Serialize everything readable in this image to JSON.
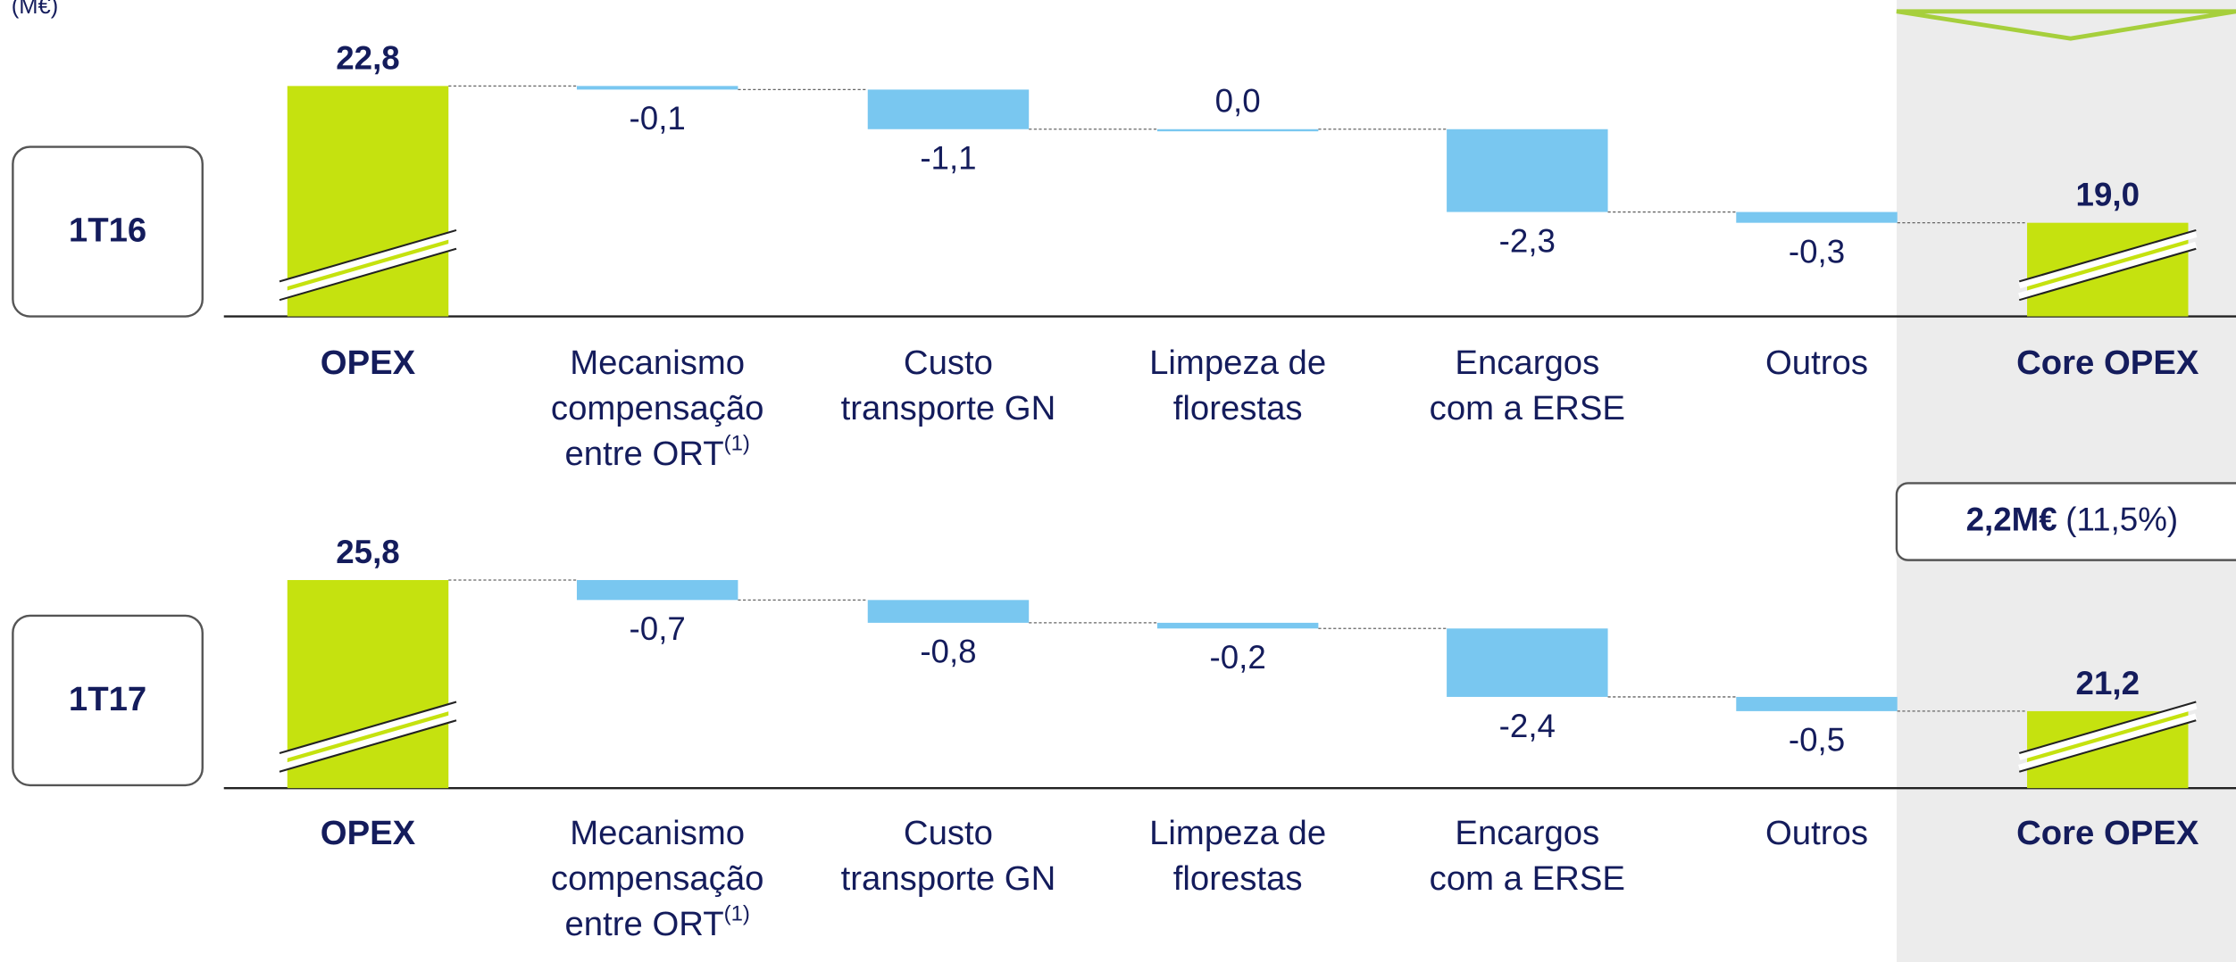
{
  "unit": "(M€)",
  "annotation": {
    "amount": "2,2M€",
    "percent": "(11,5%)"
  },
  "chart_data": [
    {
      "type": "waterfall",
      "label": "1T16",
      "categories": [
        [
          "OPEX"
        ],
        [
          "Mecanismo",
          "compensação",
          "entre ORT"
        ],
        [
          "Custo",
          "transporte GN"
        ],
        [
          "Limpeza de",
          "florestas"
        ],
        [
          "Encargos",
          "com a ERSE"
        ],
        [
          "Outros"
        ],
        [
          "Core OPEX"
        ]
      ],
      "footnote_marks": [
        null,
        "(1)",
        null,
        null,
        null,
        null,
        null
      ],
      "measure": [
        "absolute",
        "relative",
        "relative",
        "relative",
        "relative",
        "relative",
        "absolute"
      ],
      "values": [
        22.8,
        -0.1,
        -1.1,
        0.0,
        -2.3,
        -0.3,
        19.0
      ],
      "value_labels": [
        "22,8",
        "-0,1",
        "-1,1",
        "0,0",
        "-2,3",
        "-0,3",
        "19,0"
      ],
      "total_color": "#c5e20f",
      "delta_color": "#79c7f0",
      "ylim": [
        16.4,
        24.0
      ],
      "axis_break": true
    },
    {
      "type": "waterfall",
      "label": "1T17",
      "categories": [
        [
          "OPEX"
        ],
        [
          "Mecanismo",
          "compensação",
          "entre ORT"
        ],
        [
          "Custo",
          "transporte GN"
        ],
        [
          "Limpeza de",
          "florestas"
        ],
        [
          "Encargos",
          "com a ERSE"
        ],
        [
          "Outros"
        ],
        [
          "Core OPEX"
        ]
      ],
      "footnote_marks": [
        null,
        "(1)",
        null,
        null,
        null,
        null,
        null
      ],
      "measure": [
        "absolute",
        "relative",
        "relative",
        "relative",
        "relative",
        "relative",
        "absolute"
      ],
      "values": [
        25.8,
        -0.7,
        -0.8,
        -0.2,
        -2.4,
        -0.5,
        21.2
      ],
      "value_labels": [
        "25,8",
        "-0,7",
        "-0,8",
        "-0,2",
        "-2,4",
        "-0,5",
        "21,2"
      ],
      "total_color": "#c5e20f",
      "delta_color": "#79c7f0",
      "ylim": [
        18.5,
        27.4
      ],
      "axis_break": true
    }
  ]
}
